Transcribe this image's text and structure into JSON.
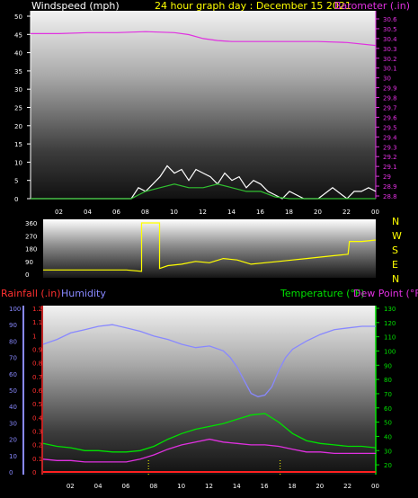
{
  "chart_data": [
    {
      "type": "line",
      "panel": "wind-barometer",
      "title": "24 hour graph day : December 15 2021",
      "ylabel_left": "Windspeed (mph)",
      "ylabel_right": "Barometer (.in)",
      "ylim_left": [
        0,
        50
      ],
      "ylim_right": [
        28.8,
        30.6
      ],
      "left_ticks": [
        "0",
        "5",
        "10",
        "15",
        "20",
        "25",
        "30",
        "35",
        "40",
        "45",
        "50"
      ],
      "right_ticks": [
        "28.8",
        "28.9",
        "29",
        "29.1",
        "29.2",
        "29.3",
        "29.4",
        "29.5",
        "29.6",
        "29.7",
        "29.8",
        "29.9",
        "30",
        "30.1",
        "30.2",
        "30.3",
        "30.4",
        "30.5",
        "30.6"
      ],
      "x_ticks": [
        "02",
        "04",
        "06",
        "08",
        "10",
        "12",
        "14",
        "16",
        "18",
        "20",
        "22",
        "00"
      ],
      "series": [
        {
          "name": "Barometer",
          "axis": "right",
          "color": "#e030e0",
          "x": [
            0,
            2,
            4,
            6,
            8,
            10,
            11,
            12,
            13,
            14,
            15,
            16,
            18,
            20,
            22,
            24
          ],
          "values": [
            30.45,
            30.45,
            30.46,
            30.46,
            30.47,
            30.46,
            30.44,
            30.4,
            30.38,
            30.37,
            30.37,
            30.37,
            30.37,
            30.37,
            30.36,
            30.33
          ]
        },
        {
          "name": "Wind",
          "axis": "left",
          "color": "#ffffff",
          "x": [
            0,
            2,
            4,
            6,
            7,
            7.5,
            8,
            8.5,
            9,
            9.5,
            10,
            10.5,
            11,
            11.5,
            12,
            12.5,
            13,
            13.5,
            14,
            14.5,
            15,
            15.5,
            16,
            16.5,
            17,
            17.5,
            18,
            19,
            20,
            21,
            22,
            22.5,
            23,
            23.5,
            24
          ],
          "values": [
            0,
            0,
            0,
            0,
            0,
            3,
            2,
            4,
            6,
            9,
            7,
            8,
            5,
            8,
            7,
            6,
            4,
            7,
            5,
            6,
            3,
            5,
            4,
            2,
            1,
            0,
            2,
            0,
            0,
            3,
            0,
            2,
            2,
            3,
            2
          ]
        },
        {
          "name": "Wind avg",
          "axis": "left",
          "color": "#30c030",
          "x": [
            0,
            7,
            7.5,
            8,
            9,
            10,
            11,
            12,
            13,
            14,
            15,
            16,
            17,
            18,
            24
          ],
          "values": [
            0,
            0,
            1,
            2,
            3,
            4,
            3,
            3,
            4,
            3,
            2,
            2,
            0.5,
            0,
            0
          ]
        }
      ]
    },
    {
      "type": "line",
      "panel": "wind-direction",
      "left_ticks": [
        "0",
        "90",
        "180",
        "270",
        "360"
      ],
      "right_labels": [
        "N",
        "W",
        "S",
        "E",
        "N"
      ],
      "ylim": [
        0,
        360
      ],
      "x_ticks": [
        "02",
        "04",
        "06",
        "08",
        "10",
        "12",
        "14",
        "16",
        "18",
        "20",
        "22",
        "00"
      ],
      "series": [
        {
          "name": "Direction",
          "color": "#ffff00",
          "x": [
            0,
            6,
            7.1,
            7.1,
            8,
            8.4,
            8.4,
            9,
            10,
            11,
            12,
            13,
            14,
            15,
            16,
            17,
            18,
            19,
            20,
            21,
            22,
            22.1,
            23,
            24
          ],
          "values": [
            30,
            30,
            20,
            360,
            360,
            360,
            40,
            60,
            70,
            90,
            80,
            110,
            100,
            70,
            80,
            90,
            100,
            110,
            120,
            130,
            140,
            230,
            230,
            240
          ]
        }
      ]
    },
    {
      "type": "line",
      "panel": "temperature-humidity-rain",
      "ylabel_left_1": "Rainfall (.in)",
      "ylabel_left_2": "Humidity",
      "ylabel_right_1": "Temperature (°F)",
      "ylabel_right_2": "Dew Point (°F)",
      "ylim_humidity": [
        0,
        100
      ],
      "ylim_rain": [
        0,
        1.2
      ],
      "ylim_temp": [
        15,
        130
      ],
      "humidity_ticks": [
        "0",
        "10",
        "20",
        "30",
        "40",
        "50",
        "60",
        "70",
        "80",
        "90",
        "100"
      ],
      "rain_ticks": [
        "0",
        "0.1",
        "0.2",
        "0.3",
        "0.4",
        "0.5",
        "0.6",
        "0.7",
        "0.8",
        "0.9",
        "1",
        "1.1",
        "1.2"
      ],
      "temp_ticks": [
        "20",
        "30",
        "40",
        "50",
        "60",
        "70",
        "80",
        "90",
        "100",
        "110",
        "120",
        "130"
      ],
      "x_ticks": [
        "02",
        "04",
        "06",
        "08",
        "10",
        "12",
        "14",
        "16",
        "18",
        "20",
        "22",
        "00"
      ],
      "series": [
        {
          "name": "Humidity",
          "color": "#8888ff",
          "x": [
            0,
            1,
            2,
            3,
            4,
            5,
            6,
            7,
            8,
            9,
            10,
            11,
            12,
            13,
            13.5,
            14,
            14.5,
            15,
            15.5,
            16,
            16.5,
            17,
            17.5,
            18,
            19,
            20,
            21,
            22,
            23,
            24
          ],
          "values": [
            78,
            81,
            85,
            87,
            89,
            90,
            88,
            86,
            83,
            81,
            78,
            76,
            77,
            74,
            70,
            64,
            56,
            48,
            46,
            47,
            52,
            62,
            70,
            75,
            80,
            84,
            87,
            88,
            89,
            89
          ]
        },
        {
          "name": "Temperature",
          "color": "#00e000",
          "x": [
            0,
            1,
            2,
            3,
            4,
            5,
            6,
            7,
            8,
            9,
            10,
            11,
            12,
            13,
            14,
            15,
            16,
            17,
            18,
            19,
            20,
            21,
            22,
            23,
            24
          ],
          "values": [
            35,
            33,
            32,
            30,
            30,
            29,
            29,
            30,
            33,
            38,
            42,
            45,
            47,
            49,
            52,
            55,
            56,
            50,
            42,
            37,
            35,
            34,
            33,
            33,
            32
          ]
        },
        {
          "name": "Dew Point",
          "color": "#e030e0",
          "x": [
            0,
            1,
            2,
            3,
            4,
            5,
            6,
            7,
            8,
            9,
            10,
            11,
            12,
            13,
            14,
            15,
            16,
            17,
            18,
            19,
            20,
            21,
            22,
            23,
            24
          ],
          "values": [
            24,
            23,
            23,
            22,
            22,
            22,
            22,
            24,
            27,
            31,
            34,
            36,
            38,
            36,
            35,
            34,
            34,
            33,
            31,
            29,
            29,
            28,
            28,
            28,
            28
          ]
        },
        {
          "name": "Rainfall",
          "color": "#ff2020",
          "x": [
            0,
            24
          ],
          "values": [
            0,
            0
          ]
        }
      ],
      "markers": [
        7.6,
        17.1
      ]
    }
  ]
}
